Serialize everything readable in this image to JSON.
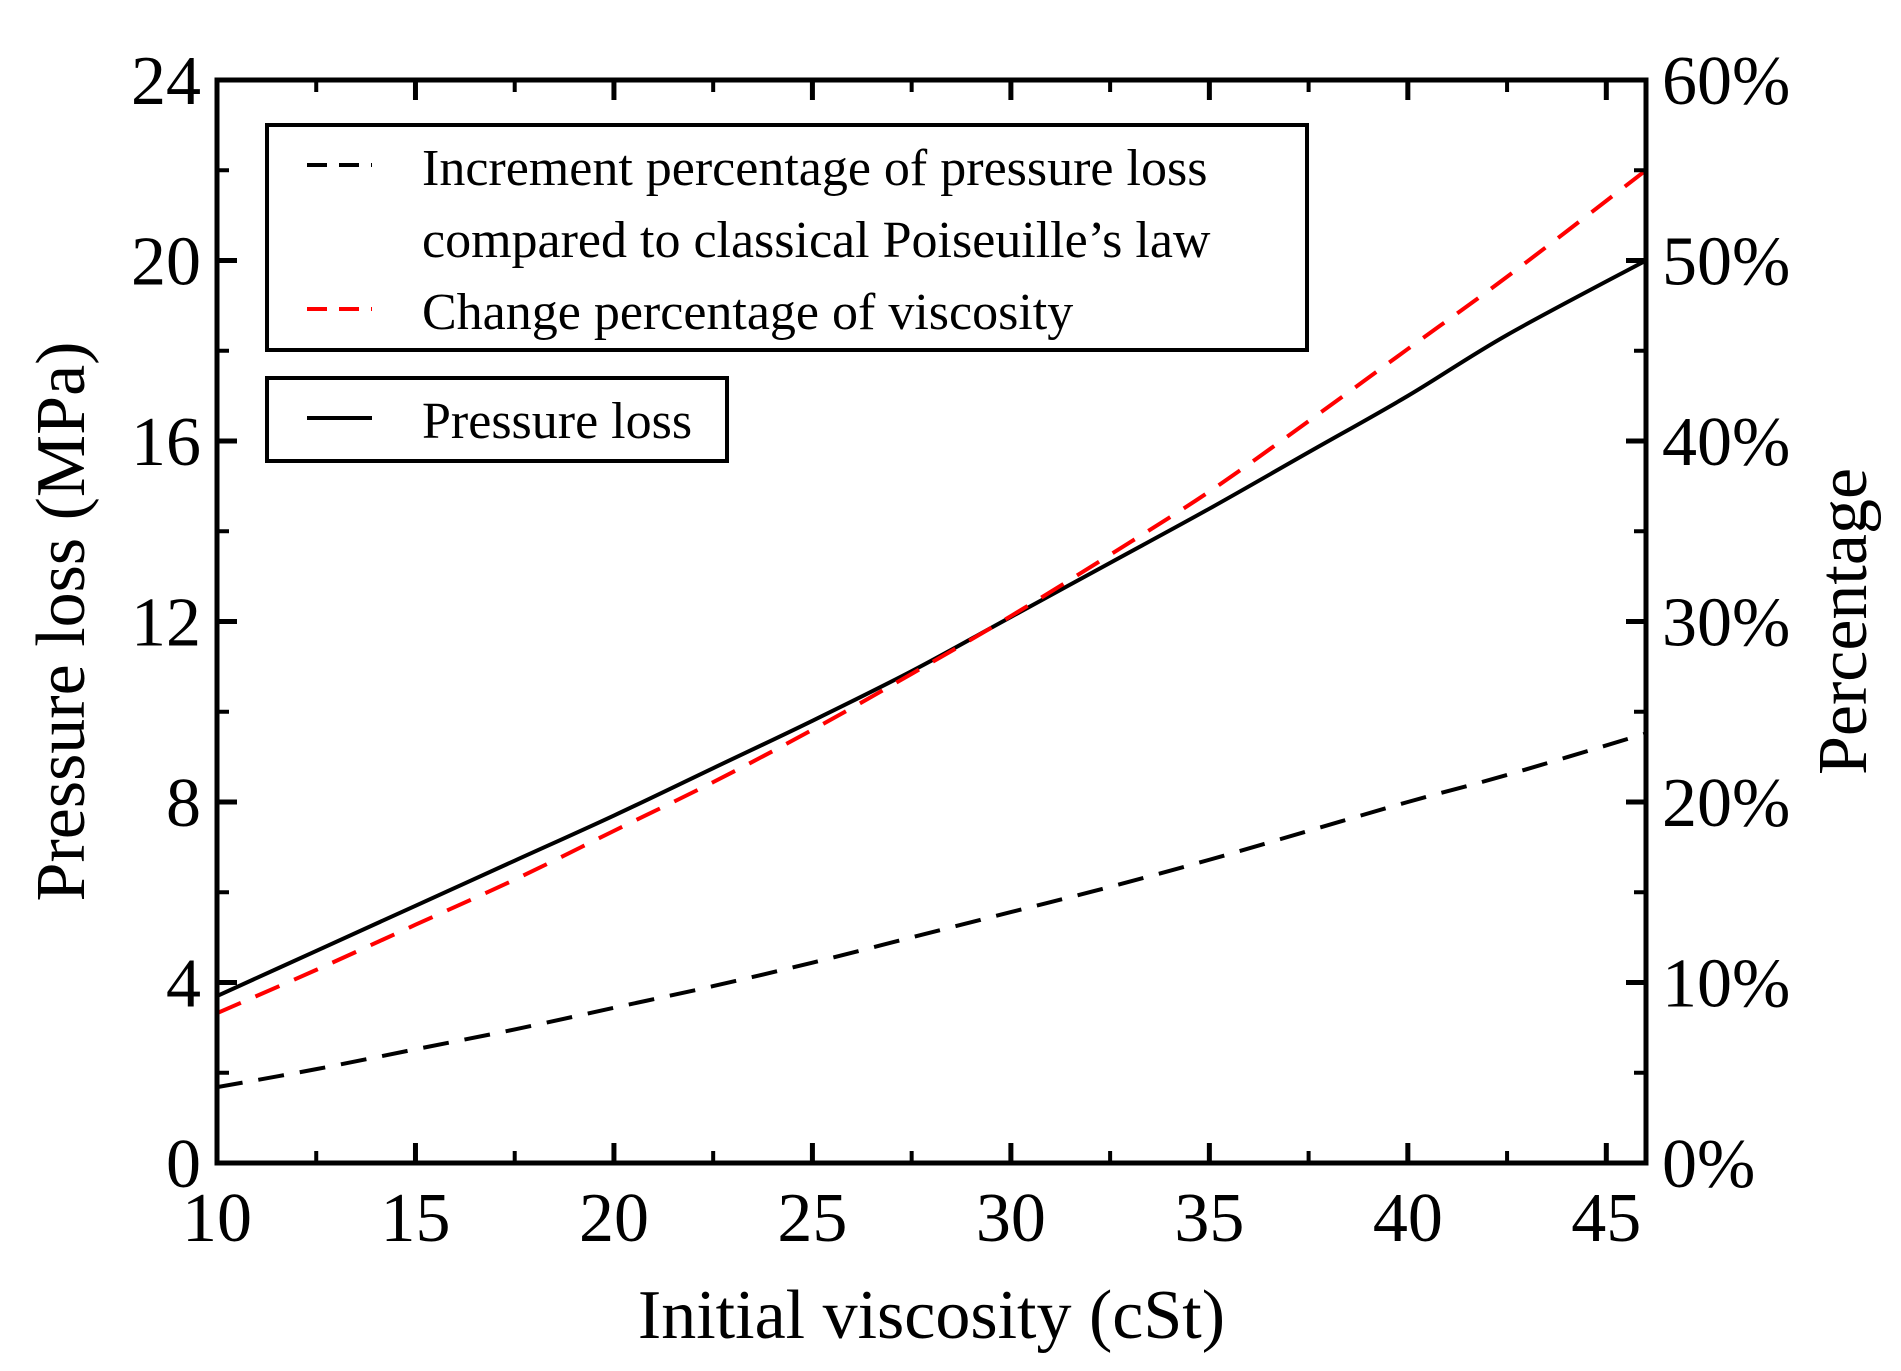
{
  "chart_data": {
    "type": "line",
    "xlabel": "Initial viscosity (cSt)",
    "ylabel": "Pressure loss (MPa)",
    "y2label": "Percentage",
    "xlim": [
      10,
      46
    ],
    "ylim": [
      0,
      24
    ],
    "y2lim": [
      0,
      60
    ],
    "x_ticks": [
      10,
      15,
      20,
      25,
      30,
      35,
      40,
      45
    ],
    "x_tick_labels": [
      "10",
      "15",
      "20",
      "25",
      "30",
      "35",
      "40",
      "45"
    ],
    "y_ticks": [
      0,
      4,
      8,
      12,
      16,
      20,
      24
    ],
    "y_tick_labels": [
      "0",
      "4",
      "8",
      "12",
      "16",
      "20",
      "24"
    ],
    "y2_ticks": [
      0,
      10,
      20,
      30,
      40,
      50,
      60
    ],
    "y2_tick_labels": [
      "0%",
      "10%",
      "20%",
      "30%",
      "40%",
      "50%",
      "60%"
    ],
    "grid": false,
    "legend": [
      {
        "placement": "top-left",
        "entries": [
          {
            "lines": [
              "Increment percentage of pressure loss",
              "compared to classical Poiseuille’s law"
            ],
            "color": "#000000",
            "dash": "dashed"
          },
          {
            "lines": [
              "Change percentage of viscosity"
            ],
            "color": "#ff0000",
            "dash": "dashed"
          }
        ]
      },
      {
        "placement": "top-left",
        "entries": [
          {
            "lines": [
              "Pressure loss"
            ],
            "color": "#000000",
            "dash": "solid"
          }
        ]
      }
    ],
    "series": [
      {
        "name": "Pressure loss",
        "axis": "left",
        "color": "#000000",
        "dash": "solid",
        "x": [
          10,
          12.5,
          15,
          17.5,
          20,
          22.5,
          25,
          27.5,
          30,
          32.5,
          35,
          37.5,
          40,
          42.5,
          46
        ],
        "y": [
          3.7,
          4.7,
          5.7,
          6.7,
          7.7,
          8.75,
          9.8,
          10.9,
          12.1,
          13.3,
          14.5,
          15.75,
          17.0,
          18.35,
          20.0
        ]
      },
      {
        "name": "Increment percentage of pressure loss compared to classical Poiseuille’s law",
        "axis": "right",
        "color": "#000000",
        "dash": "dashed",
        "x": [
          10,
          12.5,
          15,
          17.5,
          20,
          22.5,
          25,
          27.5,
          30,
          32.5,
          35,
          37.5,
          40,
          42.5,
          46
        ],
        "y": [
          4.2,
          5.2,
          6.3,
          7.4,
          8.6,
          9.8,
          11.1,
          12.5,
          13.9,
          15.3,
          16.8,
          18.4,
          20.0,
          21.5,
          23.8
        ]
      },
      {
        "name": "Change percentage of viscosity",
        "axis": "right",
        "color": "#ff0000",
        "dash": "dashed",
        "x": [
          10,
          12.5,
          15,
          17.5,
          20,
          22.5,
          25,
          27.5,
          30,
          32.5,
          35,
          37.5,
          40,
          42.5,
          46
        ],
        "y": [
          8.3,
          10.7,
          13.2,
          15.7,
          18.4,
          21.1,
          24.0,
          27.1,
          30.3,
          33.7,
          37.2,
          41.1,
          45.1,
          49.1,
          55.0
        ]
      }
    ]
  }
}
